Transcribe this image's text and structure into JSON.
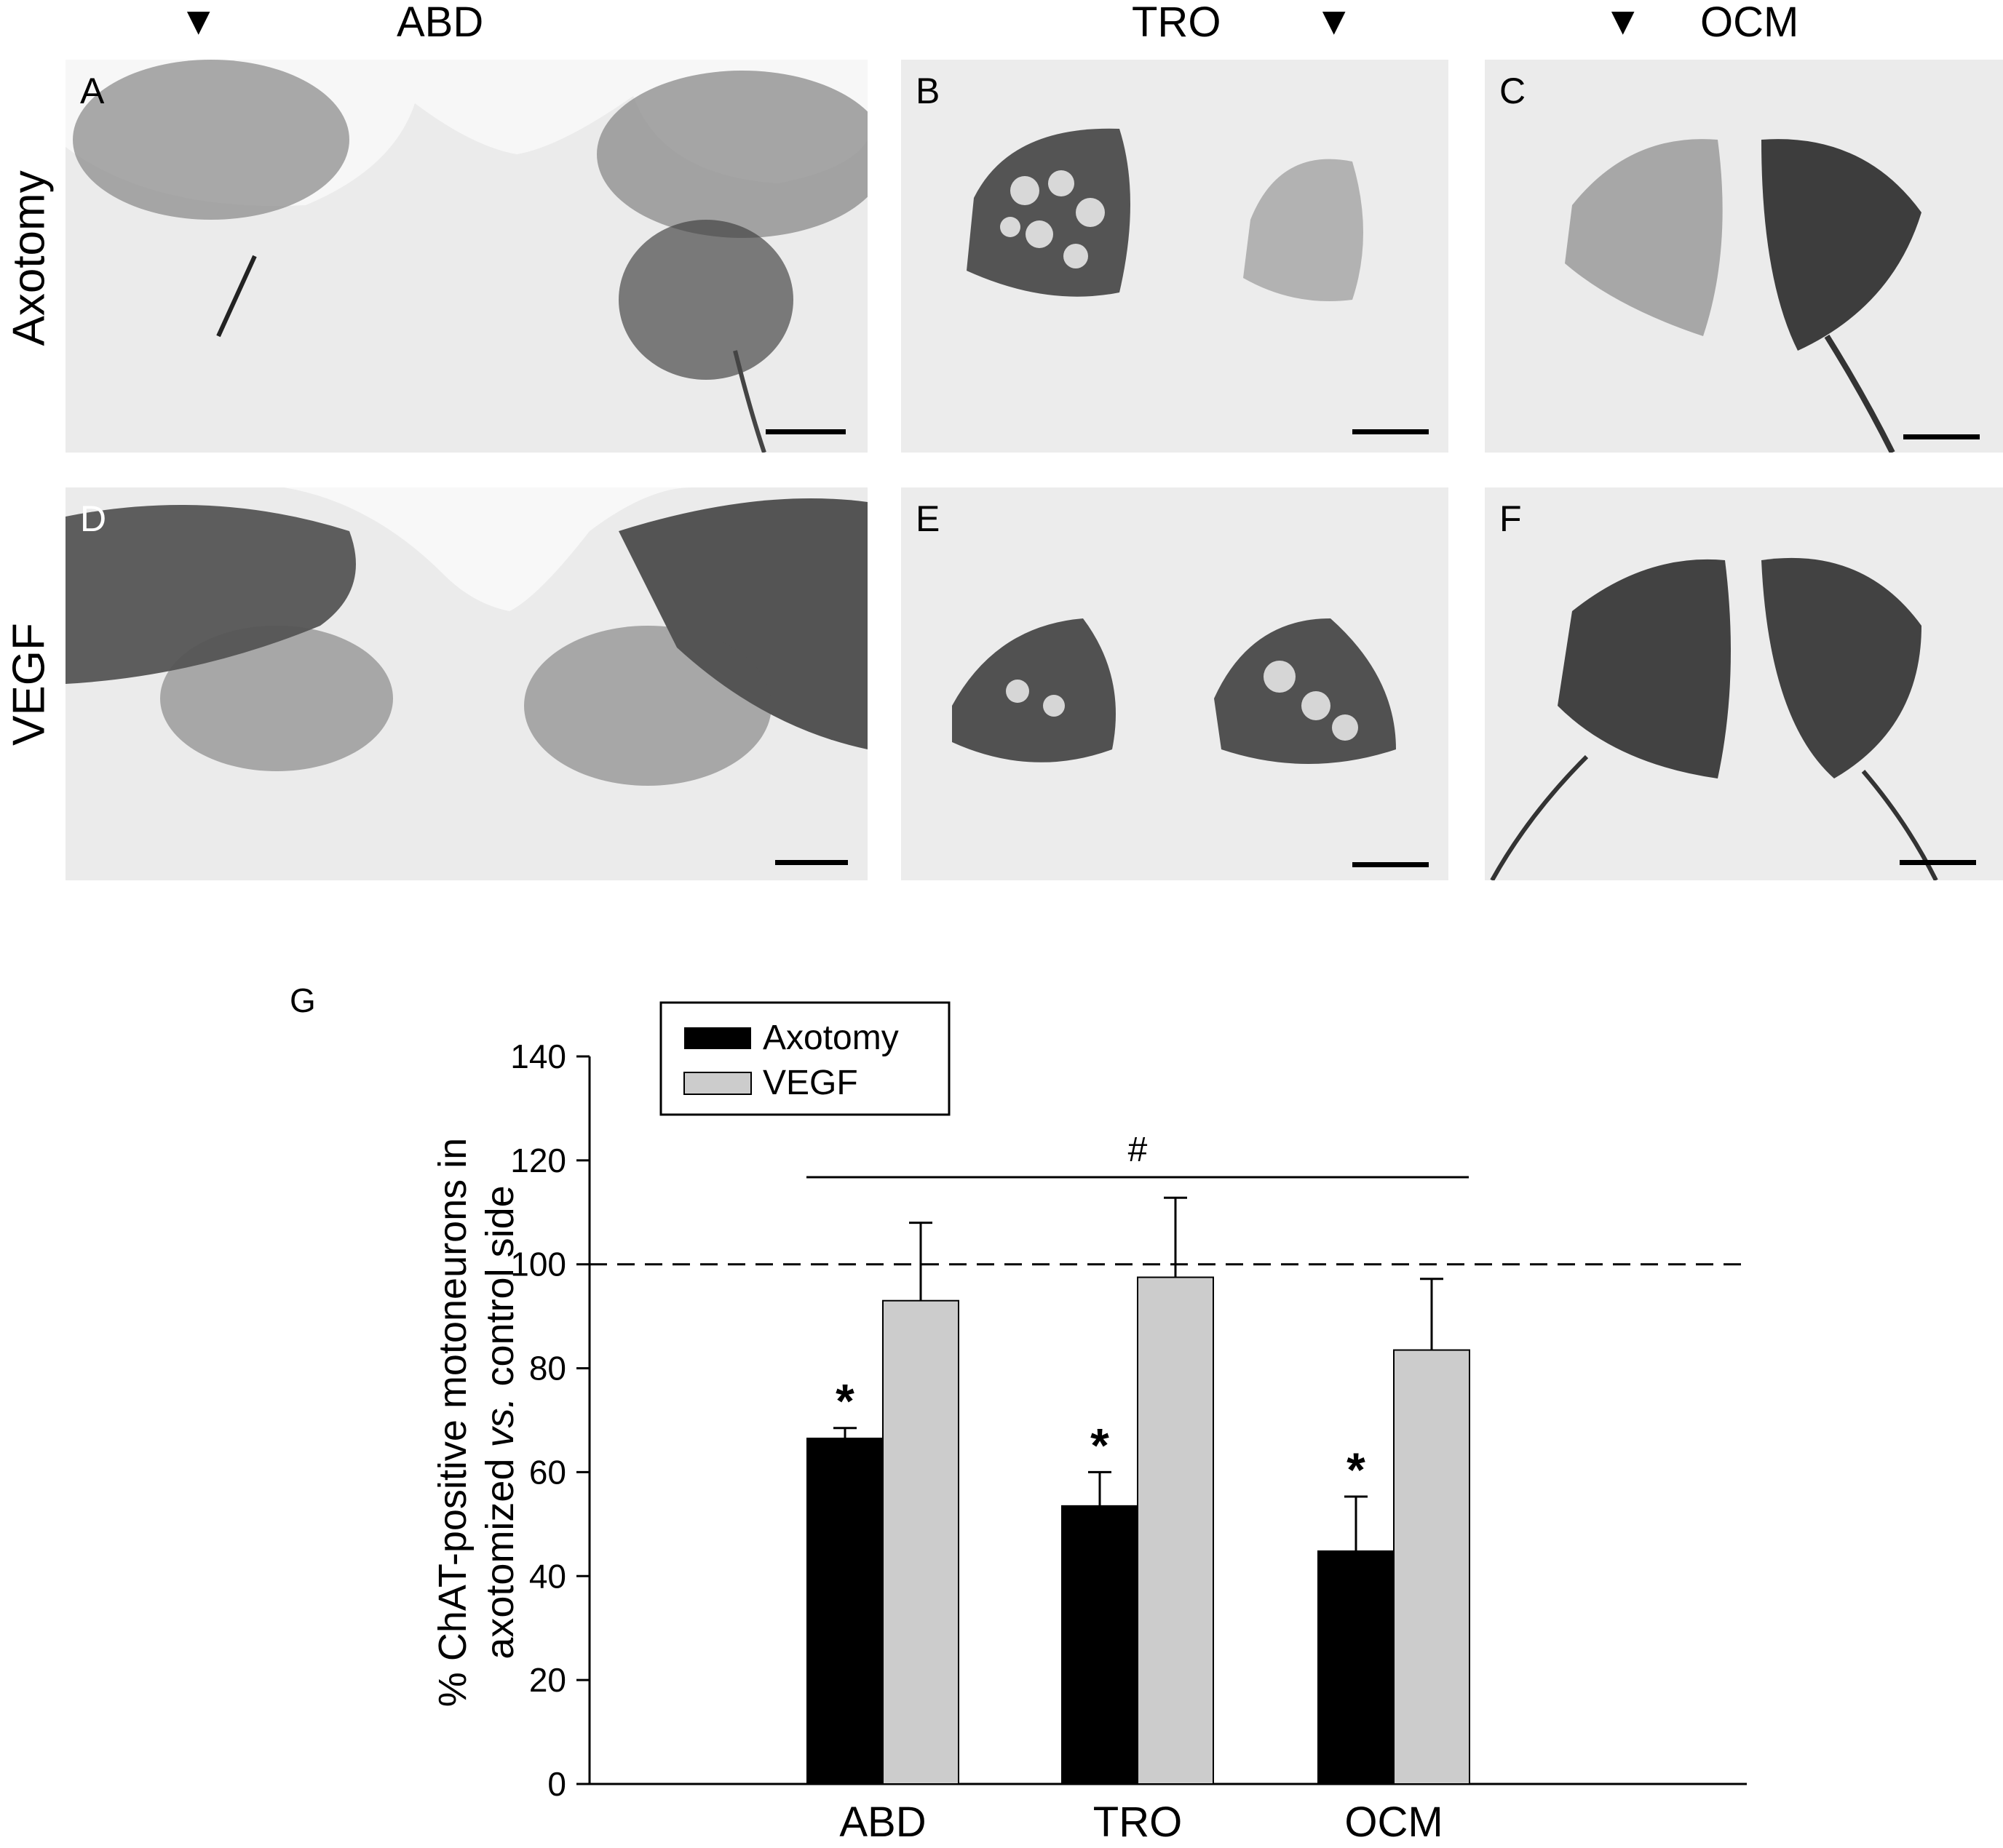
{
  "columns": [
    {
      "label": "ABD"
    },
    {
      "label": "TRO"
    },
    {
      "label": "OCM"
    }
  ],
  "rows": [
    {
      "label": "Axotomy"
    },
    {
      "label": "VEGF"
    }
  ],
  "arrow_glyph": "▼",
  "panels": [
    {
      "letter": "A"
    },
    {
      "letter": "B"
    },
    {
      "letter": "C"
    },
    {
      "letter": "D"
    },
    {
      "letter": "E"
    },
    {
      "letter": "F"
    }
  ],
  "chart_data": {
    "type": "bar",
    "panel_letter": "G",
    "categories": [
      "ABD",
      "TRO",
      "OCM"
    ],
    "series": [
      {
        "name": "Axotomy",
        "color": "#000000",
        "values": [
          66.5,
          53.5,
          44.8
        ],
        "errors": [
          2.0,
          6.5,
          10.5
        ]
      },
      {
        "name": "VEGF",
        "color": "#cccccc",
        "values": [
          93.0,
          97.5,
          83.5
        ],
        "errors": [
          15.0,
          15.3,
          13.7
        ]
      }
    ],
    "ylabel_line1": "% ChAT-positive motoneurons in",
    "ylabel_line2_a": "axotomized ",
    "ylabel_line2_b": "vs.",
    "ylabel_line2_c": " control side",
    "ylim": [
      0,
      140
    ],
    "yticks": [
      "0",
      "20",
      "40",
      "60",
      "80",
      "100",
      "120",
      "140"
    ],
    "reference_line": 100,
    "significance_marks": [
      "*",
      "*",
      "*"
    ],
    "group_mark": "#",
    "legend_position": "top-left"
  }
}
